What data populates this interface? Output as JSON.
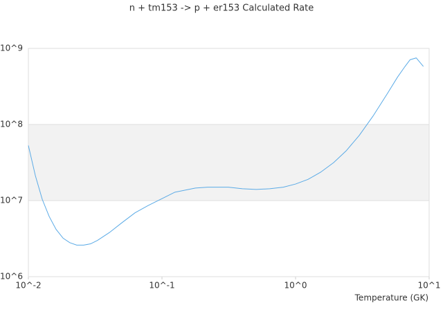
{
  "chart_data": {
    "type": "line",
    "title": "n + tm153 -> p + er153 Calculated Rate",
    "x_label": "Temperature (GK)",
    "x": [
      0.01,
      0.0113,
      0.0127,
      0.0143,
      0.0161,
      0.0182,
      0.0204,
      0.023,
      0.0259,
      0.0292,
      0.0329,
      0.0404,
      0.05,
      0.0628,
      0.0787,
      0.1,
      0.125,
      0.178,
      0.22,
      0.314,
      0.4,
      0.507,
      0.64,
      0.81,
      1.0,
      1.24,
      1.54,
      1.93,
      2.39,
      3.0,
      3.8,
      4.9,
      5.8,
      6.6,
      7.2,
      8.0,
      9.05
    ],
    "series": [
      {
        "color": "#5aaae6",
        "values": [
          53000000,
          21000000,
          10400000,
          6200000,
          4200000,
          3200000,
          2800000,
          2600000,
          2600000,
          2700000,
          3000000,
          3800000,
          5100000,
          6900000,
          8600000,
          10600000,
          12900000,
          14600000,
          15000000,
          15000000,
          14300000,
          14000000,
          14300000,
          15000000,
          16500000,
          19000000,
          23600000,
          31600000,
          45000000,
          72000000,
          129000000,
          260000000,
          420000000,
          580000000,
          710000000,
          750000000,
          580000000
        ]
      }
    ],
    "xlim": [
      0.01,
      10
    ],
    "ylim": [
      1000000,
      1000000000
    ],
    "xticks": [
      {
        "value": 0.01,
        "label": "10^-2"
      },
      {
        "value": 0.1,
        "label": "10^-1"
      },
      {
        "value": 1,
        "label": "10^0"
      },
      {
        "value": 10,
        "label": "10^1"
      }
    ],
    "yticks": [
      {
        "value": 1000000,
        "label": "10^6"
      },
      {
        "value": 10000000,
        "label": "10^7"
      },
      {
        "value": 100000000,
        "label": "10^8"
      },
      {
        "value": 1000000000,
        "label": "10^9"
      }
    ],
    "log_x": true,
    "log_y": true,
    "grid": true
  }
}
